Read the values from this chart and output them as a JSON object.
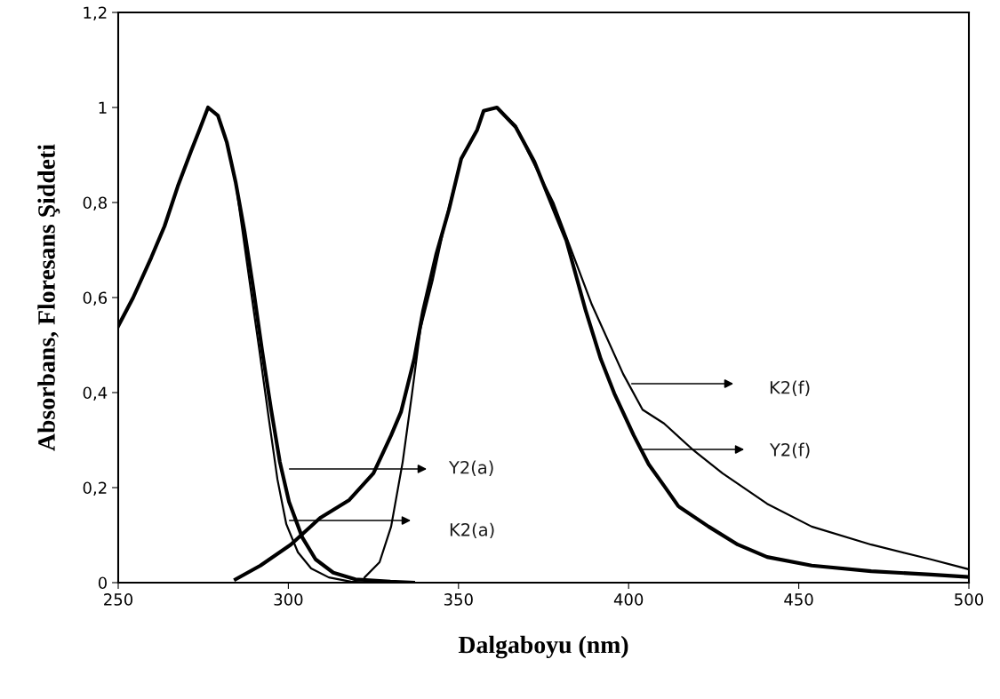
{
  "chart_data": {
    "type": "line",
    "xlabel": "Dalgaboyu (nm)",
    "ylabel": "Absorbans, Floresans Şiddeti",
    "xlim": [
      250,
      500
    ],
    "xticks": [
      250,
      300,
      350,
      400,
      450,
      500
    ],
    "ylim": [
      0,
      1.2
    ],
    "yticks": [
      0,
      {
        "value": 0.2,
        "label": "0,2"
      },
      {
        "value": 0.4,
        "label": "0,4"
      },
      {
        "value": 0.6,
        "label": "0,6"
      },
      {
        "value": 0.8,
        "label": "0,8"
      },
      1,
      {
        "value": 1.2,
        "label": "1,2"
      }
    ],
    "grid": false,
    "marker": "none",
    "line_style": "solid",
    "series": [
      {
        "color": "#000000",
        "x": [
          250,
          254.4,
          259.7,
          263.6,
          267.5,
          271.4,
          274,
          276.4,
          279.3,
          281.9,
          284.5,
          287.1,
          289.7,
          292.3,
          294.9,
          297.5,
          300.2,
          304.1,
          308,
          313.2,
          319.7,
          330,
          336.7
        ],
        "values": [
          0.54,
          0.6,
          0.684,
          0.75,
          0.834,
          0.908,
          0.955,
          1.0,
          0.983,
          0.927,
          0.843,
          0.74,
          0.619,
          0.488,
          0.366,
          0.254,
          0.17,
          0.095,
          0.049,
          0.021,
          0.007,
          0.002,
          0
        ]
      },
      {
        "color": "#000000",
        "x": [
          250,
          254.4,
          259.7,
          263.6,
          267.5,
          271.4,
          274,
          276.4,
          279.3,
          281.9,
          284.5,
          288.9,
          291.5,
          294.2,
          296.8,
          299.4,
          302.8,
          306.7,
          311.9,
          318.4,
          325
        ],
        "values": [
          0.54,
          0.6,
          0.684,
          0.75,
          0.834,
          0.908,
          0.955,
          1.0,
          0.983,
          0.927,
          0.843,
          0.619,
          0.488,
          0.348,
          0.217,
          0.123,
          0.064,
          0.03,
          0.011,
          0.002,
          0
        ]
      },
      {
        "color": "#000000",
        "x": [
          284.5,
          291.8,
          300.7,
          309.3,
          317.9,
          325,
          330.2,
          333.1,
          337,
          339.6,
          343.5,
          347.2,
          350.8,
          355.5,
          357.4,
          361.3,
          366.8,
          372.3,
          378,
          381.7,
          387.4,
          391.8,
          395.8,
          401.5,
          405.9,
          410.4,
          414.6,
          423.5,
          432.1,
          440.7,
          453.8,
          471.3,
          488.8,
          500
        ],
        "values": [
          0.007,
          0.036,
          0.08,
          0.136,
          0.174,
          0.23,
          0.31,
          0.359,
          0.471,
          0.572,
          0.692,
          0.785,
          0.892,
          0.953,
          0.993,
          1.0,
          0.959,
          0.886,
          0.785,
          0.72,
          0.572,
          0.471,
          0.398,
          0.31,
          0.249,
          0.204,
          0.161,
          0.118,
          0.08,
          0.054,
          0.036,
          0.024,
          0.017,
          0.012
        ]
      },
      {
        "color": "#000000",
        "x": [
          322.4,
          326.8,
          330.2,
          333.6,
          336.2,
          338.8,
          342.5,
          346.1,
          350.8,
          355.5,
          357.4,
          361.3,
          366.8,
          370.4,
          378,
          389.2,
          398.4,
          404.1,
          410.4,
          419,
          427.6,
          440.7,
          453.8,
          471.3,
          488.8,
          500
        ],
        "values": [
          0.011,
          0.043,
          0.118,
          0.254,
          0.39,
          0.533,
          0.639,
          0.759,
          0.892,
          0.953,
          0.993,
          1.0,
          0.962,
          0.907,
          0.798,
          0.585,
          0.439,
          0.364,
          0.335,
          0.279,
          0.23,
          0.166,
          0.118,
          0.08,
          0.049,
          0.028
        ]
      }
    ],
    "annotations": [
      "Y2(a)",
      "K2(a)",
      "K2(f)",
      "Y2(f)"
    ]
  }
}
